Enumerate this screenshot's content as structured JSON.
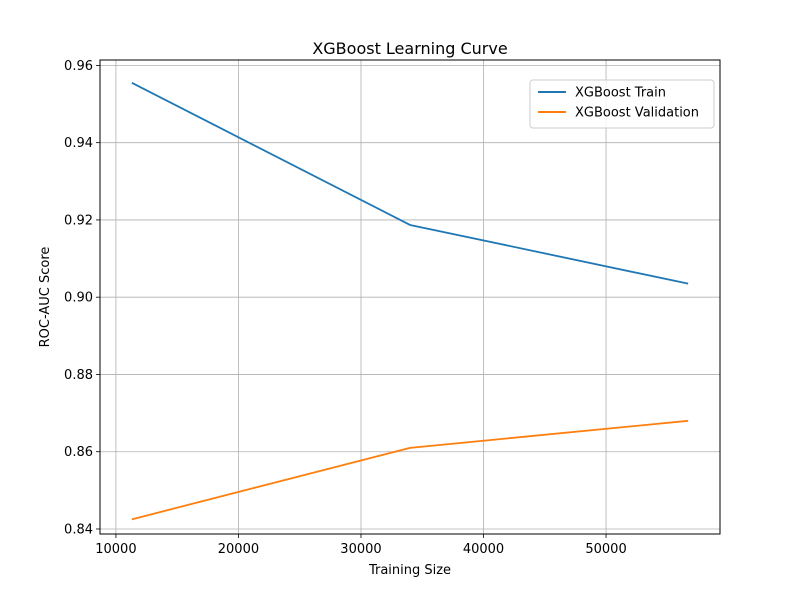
{
  "chart_data": {
    "type": "line",
    "title": "XGBoost Learning Curve",
    "xlabel": "Training Size",
    "ylabel": "ROC-AUC Score",
    "xlim": [
      8700,
      59300
    ],
    "ylim": [
      0.8387,
      0.9614
    ],
    "xticks": [
      10000,
      20000,
      30000,
      40000,
      50000
    ],
    "xtick_labels": [
      "10000",
      "20000",
      "30000",
      "40000",
      "50000"
    ],
    "yticks": [
      0.84,
      0.86,
      0.88,
      0.9,
      0.92,
      0.94,
      0.96
    ],
    "ytick_labels": [
      "0.84",
      "0.86",
      "0.88",
      "0.90",
      "0.92",
      "0.94",
      "0.96"
    ],
    "grid": true,
    "legend_position": "top-right",
    "series": [
      {
        "name": "XGBoost Train",
        "color": "#1f77b4",
        "x": [
          11300,
          34000,
          56700
        ],
        "y": [
          0.9555,
          0.9187,
          0.9035
        ]
      },
      {
        "name": "XGBoost Validation",
        "color": "#ff7f0e",
        "x": [
          11300,
          34000,
          56700
        ],
        "y": [
          0.8425,
          0.861,
          0.868
        ]
      }
    ]
  }
}
